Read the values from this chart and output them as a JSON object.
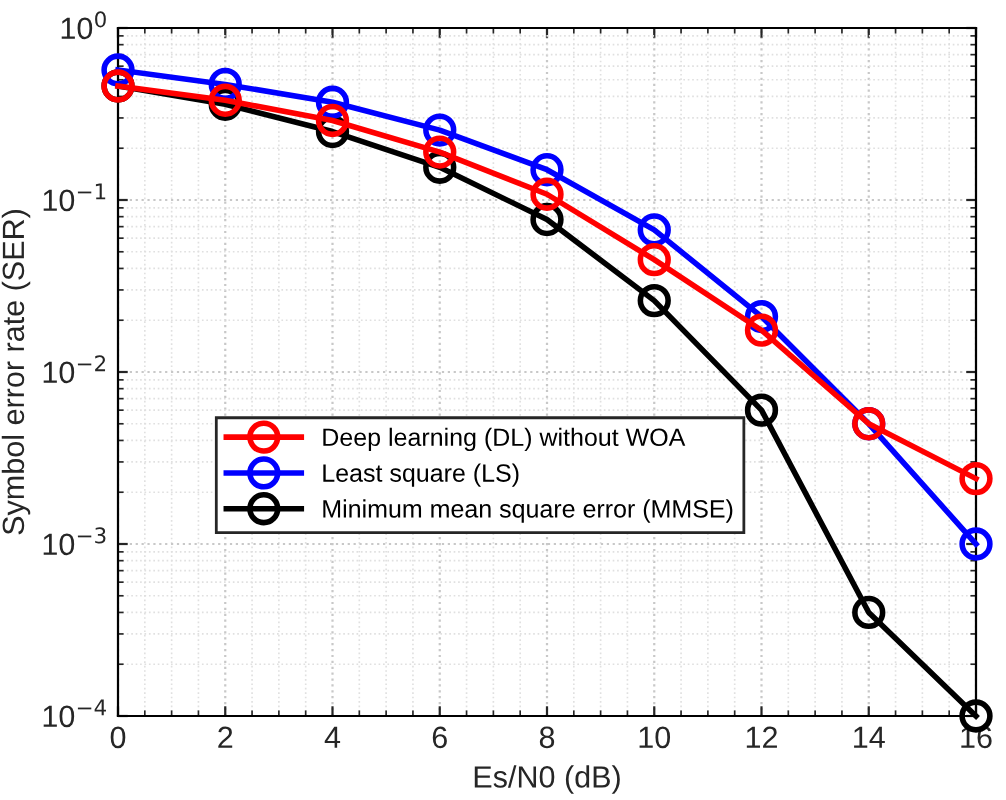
{
  "chart_data": {
    "type": "line",
    "xlabel": "Es/N0 (dB)",
    "ylabel": "Symbol error rate (SER)",
    "x": [
      0,
      2,
      4,
      6,
      8,
      10,
      12,
      14,
      16
    ],
    "series": [
      {
        "name": "Deep learning (DL) without WOA",
        "color": "#ff0000",
        "values": [
          0.46,
          0.38,
          0.29,
          0.19,
          0.108,
          0.045,
          0.0175,
          0.005,
          0.0024
        ]
      },
      {
        "name": "Least square (LS)",
        "color": "#0000ff",
        "values": [
          0.57,
          0.47,
          0.37,
          0.255,
          0.15,
          0.067,
          0.021,
          0.005,
          0.001
        ]
      },
      {
        "name": "Minimum mean square error (MMSE)",
        "color": "#000000",
        "values": [
          0.46,
          0.36,
          0.25,
          0.155,
          0.077,
          0.026,
          0.006,
          0.0004,
          0.0001
        ]
      }
    ],
    "log": "y",
    "xlim": [
      0,
      16
    ],
    "ylim": [
      0.0001,
      1
    ],
    "xticks": [
      0,
      2,
      4,
      6,
      8,
      10,
      12,
      14,
      16
    ],
    "yticks": [
      {
        "value": 0.0001,
        "label": "10$^{−4}$"
      },
      {
        "value": 0.001,
        "label": "10$^{−3}$"
      },
      {
        "value": 0.01,
        "label": "10$^{−2}$"
      },
      {
        "value": 0.1,
        "label": "10$^{−1}$"
      },
      {
        "value": 1,
        "label": "10$^{0}$"
      }
    ],
    "grid": true,
    "legend": "center left",
    "marker": "circle",
    "line_style": "solid"
  }
}
